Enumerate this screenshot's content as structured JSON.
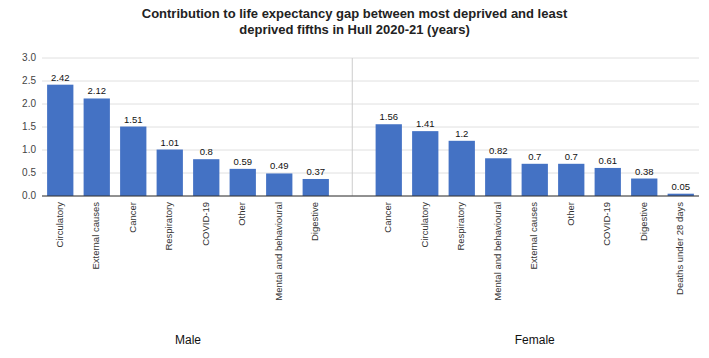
{
  "chart_data": {
    "type": "bar",
    "title": "Contribution to life expectancy gap between most deprived and least\ndeprived fifths in Hull 2020-21 (years)",
    "groups": [
      {
        "name": "Male",
        "categories": [
          "Circulatory",
          "External causes",
          "Cancer",
          "Respiratory",
          "COVID-19",
          "Other",
          "Mental and behavioural",
          "Digestive"
        ],
        "values": [
          2.42,
          2.12,
          1.51,
          1.01,
          0.8,
          0.59,
          0.49,
          0.37
        ]
      },
      {
        "name": "Female",
        "categories": [
          "Cancer",
          "Circulatory",
          "Respiratory",
          "Mental and behavioural",
          "External causes",
          "Other",
          "COVID-19",
          "Digestive",
          "Deaths under 28 days"
        ],
        "values": [
          1.56,
          1.41,
          1.2,
          0.82,
          0.7,
          0.7,
          0.61,
          0.38,
          0.05
        ]
      }
    ],
    "color": "#4472C4",
    "ylim": [
      0,
      3.0
    ],
    "yticks": [
      {
        "value": 0,
        "label": "0.0"
      },
      0.5,
      {
        "value": 1,
        "label": "1.0"
      },
      1.5,
      {
        "value": 2,
        "label": "2.0"
      },
      2.5,
      {
        "value": 3,
        "label": "3.0"
      }
    ],
    "grid": true,
    "data_labels": true
  }
}
